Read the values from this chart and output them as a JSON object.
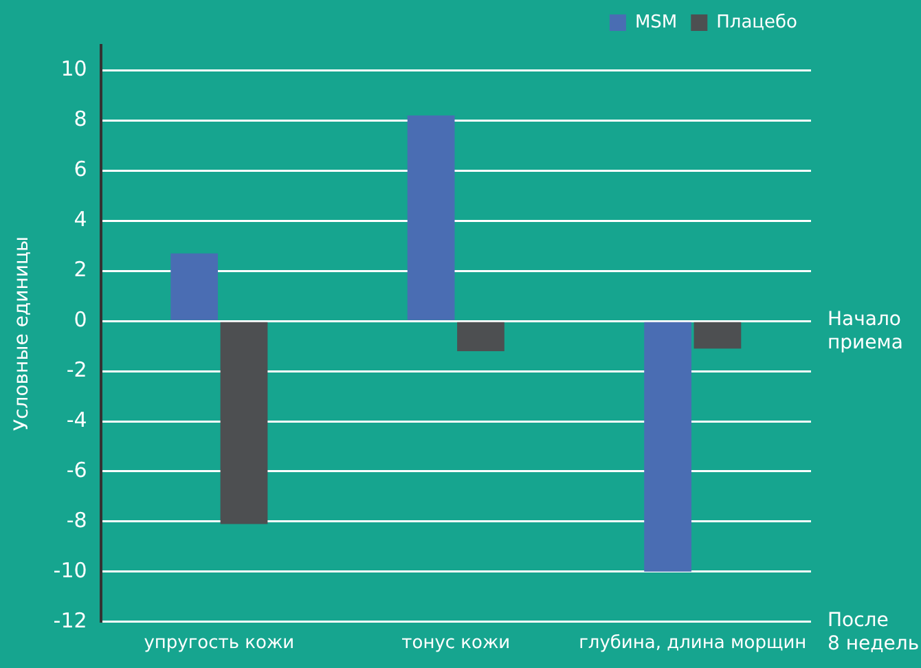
{
  "chart_data": {
    "type": "bar",
    "ylabel": "Условные единицы",
    "categories": [
      "упругость кожи",
      "тонус кожи",
      "глубина, длина морщин"
    ],
    "series": [
      {
        "name": "MSM",
        "color": "#4a6db3",
        "values": [
          2.7,
          8.2,
          -10
        ]
      },
      {
        "name": "Плацебо",
        "color": "#4d4f51",
        "values": [
          -8.1,
          -1.2,
          -1.1
        ]
      }
    ],
    "ylim": [
      -12,
      11
    ],
    "yticks": [
      -12,
      -10,
      -8,
      -6,
      -4,
      -2,
      0,
      2,
      4,
      6,
      8,
      10
    ],
    "grid": "y",
    "legend": "top right",
    "annotations": [
      "Начало\nприема",
      "После\n8 недель"
    ]
  }
}
